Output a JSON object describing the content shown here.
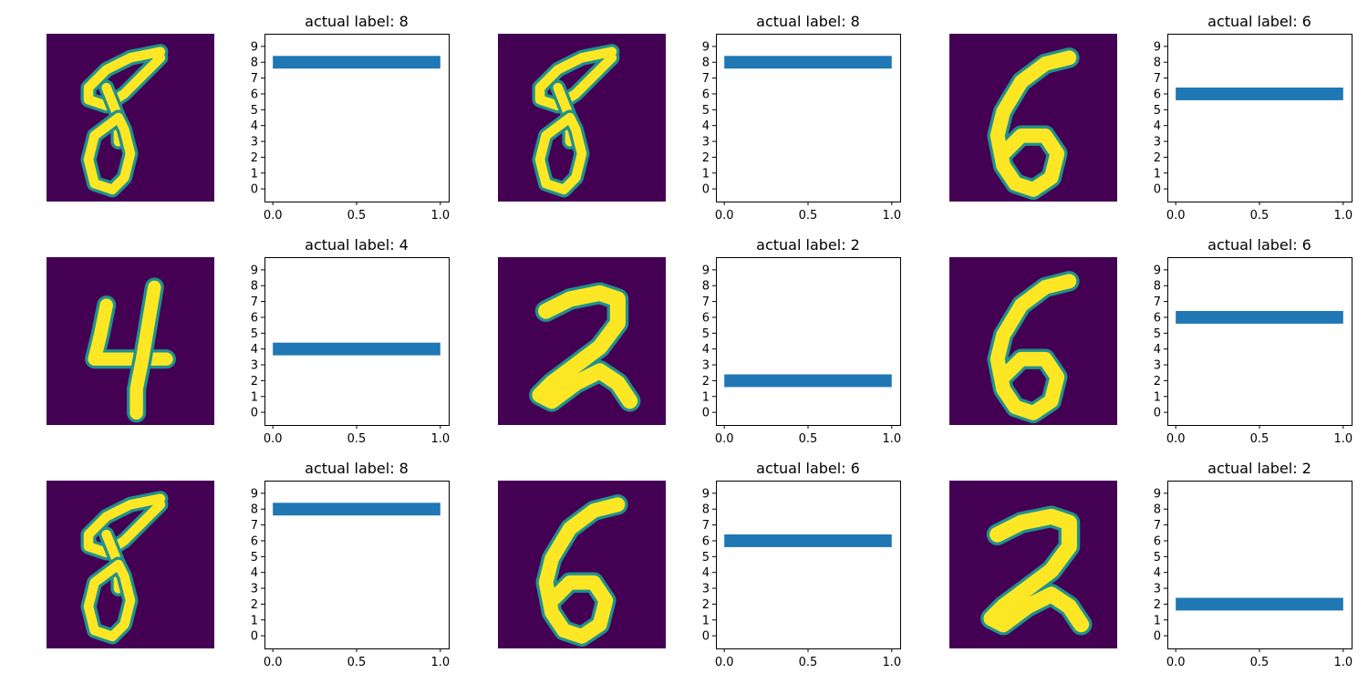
{
  "figure": {
    "title_prefix": "actual label: ",
    "colors": {
      "bar": "#1f77b4",
      "digit_background": "#440154",
      "digit_foreground": "#fde725",
      "digit_edge": "#21918c",
      "axes": "#000000"
    }
  },
  "chart_data": [
    {
      "type": "bar",
      "orientation": "horizontal",
      "title": "actual label: 8",
      "categories": [
        "0",
        "1",
        "2",
        "3",
        "4",
        "5",
        "6",
        "7",
        "8",
        "9"
      ],
      "values": [
        0,
        0,
        0,
        0,
        0,
        0,
        0,
        0,
        1,
        0
      ],
      "xlim": [
        0,
        1
      ],
      "xticks": [
        "0.0",
        "0.5",
        "1.0"
      ],
      "image": "handwritten digit 8"
    },
    {
      "type": "bar",
      "orientation": "horizontal",
      "title": "actual label: 8",
      "categories": [
        "0",
        "1",
        "2",
        "3",
        "4",
        "5",
        "6",
        "7",
        "8",
        "9"
      ],
      "values": [
        0,
        0,
        0,
        0,
        0,
        0,
        0,
        0,
        1,
        0
      ],
      "xlim": [
        0,
        1
      ],
      "xticks": [
        "0.0",
        "0.5",
        "1.0"
      ],
      "image": "handwritten digit 8"
    },
    {
      "type": "bar",
      "orientation": "horizontal",
      "title": "actual label: 6",
      "categories": [
        "0",
        "1",
        "2",
        "3",
        "4",
        "5",
        "6",
        "7",
        "8",
        "9"
      ],
      "values": [
        0,
        0,
        0,
        0,
        0,
        0,
        1,
        0,
        0,
        0
      ],
      "xlim": [
        0,
        1
      ],
      "xticks": [
        "0.0",
        "0.5",
        "1.0"
      ],
      "image": "handwritten digit 6"
    },
    {
      "type": "bar",
      "orientation": "horizontal",
      "title": "actual label: 4",
      "categories": [
        "0",
        "1",
        "2",
        "3",
        "4",
        "5",
        "6",
        "7",
        "8",
        "9"
      ],
      "values": [
        0,
        0,
        0,
        0,
        1,
        0,
        0,
        0,
        0,
        0
      ],
      "xlim": [
        0,
        1
      ],
      "xticks": [
        "0.0",
        "0.5",
        "1.0"
      ],
      "image": "handwritten digit 4"
    },
    {
      "type": "bar",
      "orientation": "horizontal",
      "title": "actual label: 2",
      "categories": [
        "0",
        "1",
        "2",
        "3",
        "4",
        "5",
        "6",
        "7",
        "8",
        "9"
      ],
      "values": [
        0,
        0,
        1,
        0,
        0,
        0,
        0,
        0,
        0,
        0
      ],
      "xlim": [
        0,
        1
      ],
      "xticks": [
        "0.0",
        "0.5",
        "1.0"
      ],
      "image": "handwritten digit 2"
    },
    {
      "type": "bar",
      "orientation": "horizontal",
      "title": "actual label: 6",
      "categories": [
        "0",
        "1",
        "2",
        "3",
        "4",
        "5",
        "6",
        "7",
        "8",
        "9"
      ],
      "values": [
        0,
        0,
        0,
        0,
        0,
        0,
        1,
        0,
        0,
        0
      ],
      "xlim": [
        0,
        1
      ],
      "xticks": [
        "0.0",
        "0.5",
        "1.0"
      ],
      "image": "handwritten digit 6"
    },
    {
      "type": "bar",
      "orientation": "horizontal",
      "title": "actual label: 8",
      "categories": [
        "0",
        "1",
        "2",
        "3",
        "4",
        "5",
        "6",
        "7",
        "8",
        "9"
      ],
      "values": [
        0,
        0,
        0,
        0,
        0,
        0,
        0,
        0,
        1,
        0
      ],
      "xlim": [
        0,
        1
      ],
      "xticks": [
        "0.0",
        "0.5",
        "1.0"
      ],
      "image": "handwritten digit 8"
    },
    {
      "type": "bar",
      "orientation": "horizontal",
      "title": "actual label: 6",
      "categories": [
        "0",
        "1",
        "2",
        "3",
        "4",
        "5",
        "6",
        "7",
        "8",
        "9"
      ],
      "values": [
        0,
        0,
        0,
        0,
        0,
        0,
        1,
        0,
        0,
        0
      ],
      "xlim": [
        0,
        1
      ],
      "xticks": [
        "0.0",
        "0.5",
        "1.0"
      ],
      "image": "handwritten digit 6"
    },
    {
      "type": "bar",
      "orientation": "horizontal",
      "title": "actual label: 2",
      "categories": [
        "0",
        "1",
        "2",
        "3",
        "4",
        "5",
        "6",
        "7",
        "8",
        "9"
      ],
      "values": [
        0,
        0,
        1,
        0,
        0,
        0,
        0,
        0,
        0,
        0
      ],
      "xlim": [
        0,
        1
      ],
      "xticks": [
        "0.0",
        "0.5",
        "1.0"
      ],
      "image": "handwritten digit 2"
    }
  ]
}
